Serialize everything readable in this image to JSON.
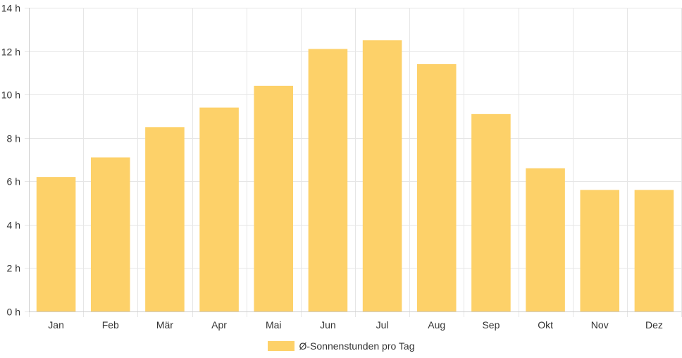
{
  "chart_data": {
    "type": "bar",
    "categories": [
      "Jan",
      "Feb",
      "Mär",
      "Apr",
      "Mai",
      "Jun",
      "Jul",
      "Aug",
      "Sep",
      "Okt",
      "Nov",
      "Dez"
    ],
    "series": [
      {
        "name": "Ø-Sonnenstunden pro Tag",
        "values": [
          6.2,
          7.1,
          8.5,
          9.4,
          10.4,
          12.1,
          12.5,
          11.4,
          9.1,
          6.6,
          5.6,
          5.6
        ]
      }
    ],
    "ylim": [
      0,
      14
    ],
    "y_ticks": [
      0,
      2,
      4,
      6,
      8,
      10,
      12,
      14
    ],
    "y_tick_suffix": " h",
    "grid": true,
    "legend_position": "bottom",
    "colors": {
      "bar": "#fdd169",
      "grid": "#e6e6e6",
      "axis": "#cccccc",
      "text": "#333333"
    }
  }
}
